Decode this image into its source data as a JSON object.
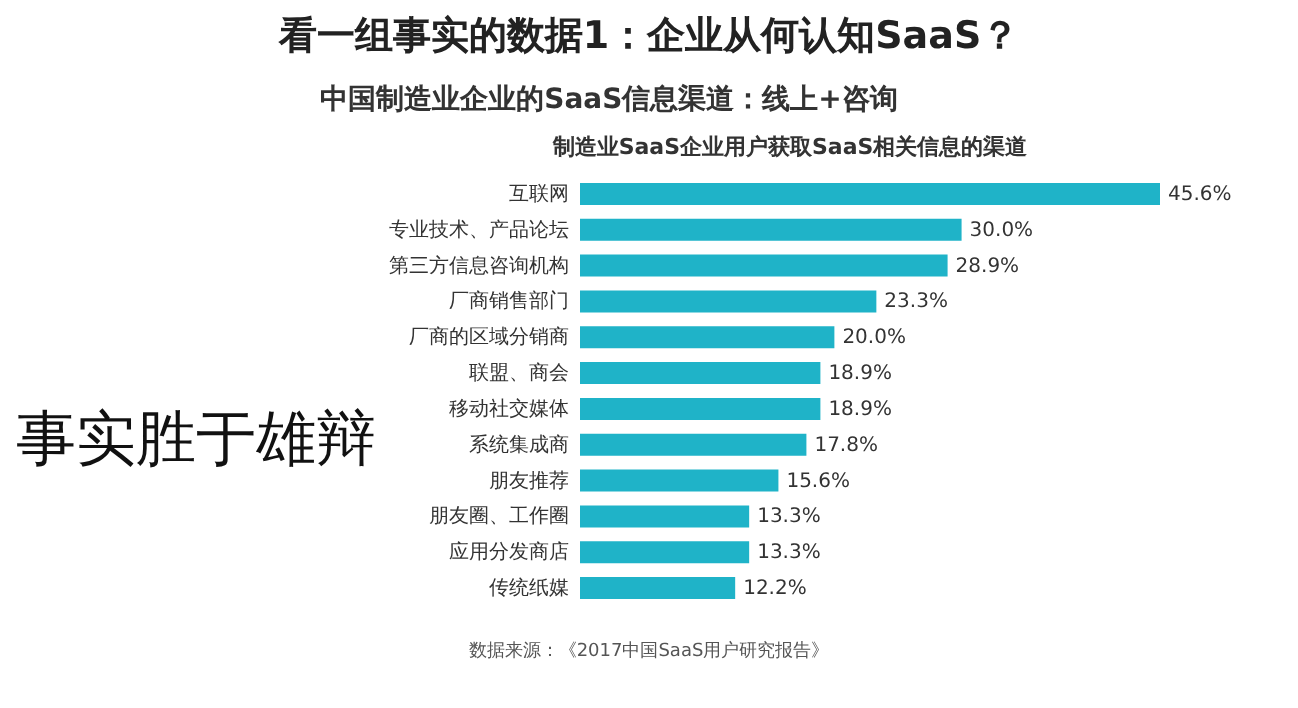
{
  "chart_data": {
    "type": "bar",
    "orientation": "horizontal",
    "title": "看一组事实的数据1：企业从何认知SaaS？",
    "subtitle": "中国制造业企业的SaaS信息渠道：线上+咨询",
    "categories": [
      "互联网",
      "专业技术、产品论坛",
      "第三方信息咨询机构",
      "厂商销售部门",
      "厂商的区域分销商",
      "联盟、商会",
      "移动社交媒体",
      "系统集成商",
      "朋友推荐",
      "朋友圈、工作圈",
      "应用分发商店",
      "传统纸媒"
    ],
    "values": [
      45.6,
      30.0,
      28.9,
      23.3,
      20.0,
      18.9,
      18.9,
      17.8,
      15.6,
      13.3,
      13.3,
      12.2
    ],
    "value_labels": [
      "45.6%",
      "30.0%",
      "28.9%",
      "23.3%",
      "20.0%",
      "18.9%",
      "18.9%",
      "17.8%",
      "15.6%",
      "13.3%",
      "13.3%",
      "12.2%"
    ],
    "color": "#1fb3c8",
    "annotations": [
      "制造业SaaS企业用户获取SaaS相关信息的渠道",
      "事实胜于雄辩",
      "数据来源：《2017中国SaaS用户研究报告》"
    ]
  }
}
